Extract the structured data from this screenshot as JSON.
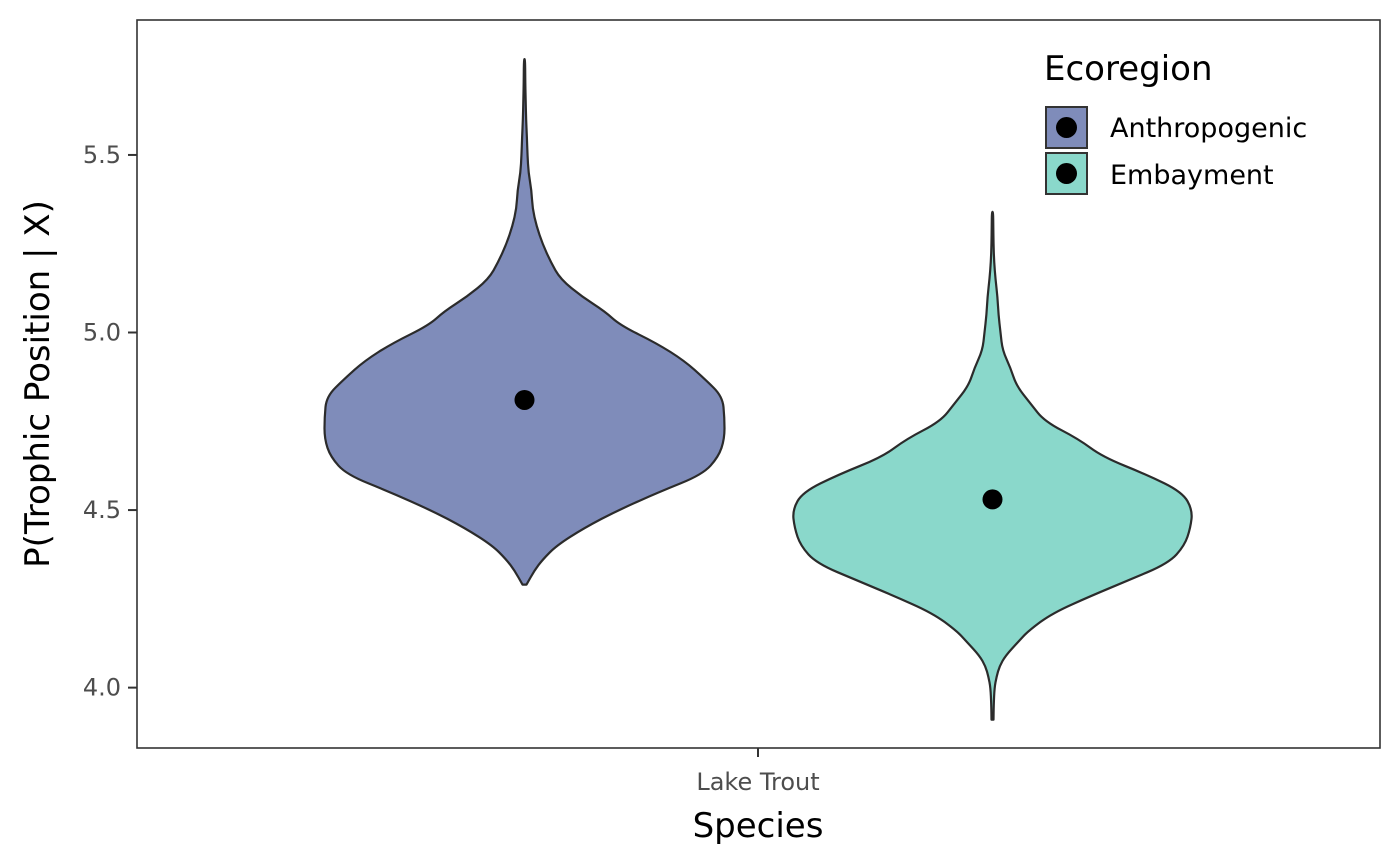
{
  "chart_data": {
    "type": "violin",
    "xlabel": "Species",
    "ylabel": "P(Trophic Position | X)",
    "categories": [
      "Lake Trout"
    ],
    "ylim": [
      3.83,
      5.88
    ],
    "yticks": [
      "4.0",
      "4.5",
      "5.0",
      "5.5"
    ],
    "grid": false,
    "legend": {
      "title": "Ecoregion",
      "placement": "top-right, inside plot"
    },
    "series": [
      {
        "name": "Anthropogenic",
        "color": "#7F8CBA",
        "median": 4.81,
        "min": 4.29,
        "max": 5.77,
        "density_profile": [
          [
            4.29,
            0.01
          ],
          [
            4.33,
            0.05
          ],
          [
            4.36,
            0.09
          ],
          [
            4.4,
            0.16
          ],
          [
            4.45,
            0.3
          ],
          [
            4.5,
            0.47
          ],
          [
            4.55,
            0.67
          ],
          [
            4.6,
            0.89
          ],
          [
            4.65,
            0.97
          ],
          [
            4.7,
            1.0
          ],
          [
            4.76,
            1.0
          ],
          [
            4.82,
            0.99
          ],
          [
            4.87,
            0.9
          ],
          [
            4.92,
            0.8
          ],
          [
            4.97,
            0.66
          ],
          [
            5.02,
            0.48
          ],
          [
            5.06,
            0.4
          ],
          [
            5.1,
            0.29
          ],
          [
            5.15,
            0.18
          ],
          [
            5.2,
            0.13
          ],
          [
            5.25,
            0.09
          ],
          [
            5.3,
            0.06
          ],
          [
            5.35,
            0.04
          ],
          [
            5.4,
            0.035
          ],
          [
            5.45,
            0.02
          ],
          [
            5.5,
            0.015
          ],
          [
            5.55,
            0.012
          ],
          [
            5.6,
            0.008
          ],
          [
            5.65,
            0.006
          ],
          [
            5.7,
            0.004
          ],
          [
            5.77,
            0.003
          ]
        ]
      },
      {
        "name": "Embayment",
        "color": "#8AD8CB",
        "median": 4.53,
        "min": 3.91,
        "max": 5.34,
        "density_profile": [
          [
            3.91,
            0.005
          ],
          [
            3.95,
            0.006
          ],
          [
            4.0,
            0.01
          ],
          [
            4.03,
            0.02
          ],
          [
            4.06,
            0.035
          ],
          [
            4.09,
            0.065
          ],
          [
            4.13,
            0.13
          ],
          [
            4.16,
            0.18
          ],
          [
            4.21,
            0.3
          ],
          [
            4.26,
            0.5
          ],
          [
            4.3,
            0.67
          ],
          [
            4.35,
            0.88
          ],
          [
            4.4,
            0.96
          ],
          [
            4.45,
            0.99
          ],
          [
            4.5,
            1.0
          ],
          [
            4.55,
            0.95
          ],
          [
            4.6,
            0.77
          ],
          [
            4.65,
            0.55
          ],
          [
            4.7,
            0.43
          ],
          [
            4.75,
            0.26
          ],
          [
            4.8,
            0.19
          ],
          [
            4.85,
            0.12
          ],
          [
            4.9,
            0.09
          ],
          [
            4.95,
            0.05
          ],
          [
            5.0,
            0.04
          ],
          [
            5.05,
            0.03
          ],
          [
            5.1,
            0.025
          ],
          [
            5.15,
            0.015
          ],
          [
            5.2,
            0.008
          ],
          [
            5.25,
            0.005
          ],
          [
            5.3,
            0.004
          ],
          [
            5.34,
            0.003
          ]
        ]
      }
    ]
  }
}
